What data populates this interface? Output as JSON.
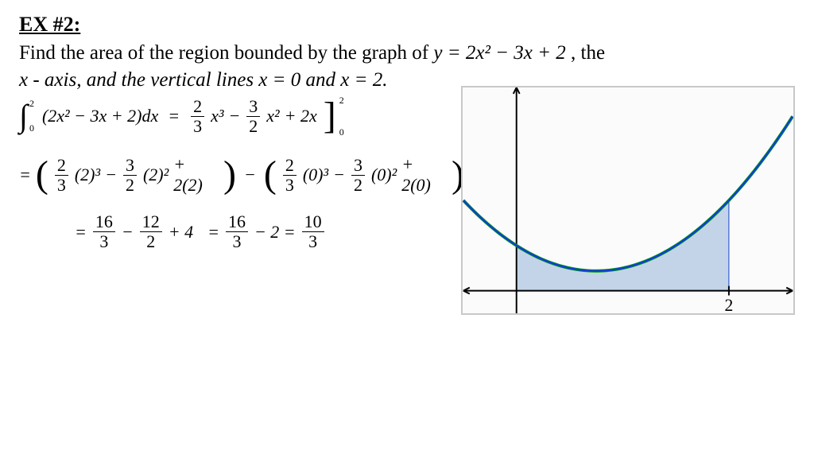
{
  "heading": "EX #2:",
  "problem_line1_pre": "Find the area of the region bounded by the graph of ",
  "problem_eq": "y = 2x² − 3x + 2",
  "problem_line1_post": ", the",
  "problem_line2": "x - axis, and the vertical lines x = 0 and x = 2.",
  "work": {
    "line1": {
      "integrand": "(2x² − 3x + 2)dx",
      "lb": "0",
      "ub": "2",
      "eq": "=",
      "t1_num": "2",
      "t1_den": "3",
      "t1_tail": "x³",
      "minus1": "−",
      "t2_num": "3",
      "t2_den": "2",
      "t2_tail": "x²",
      "plus": "+ 2x",
      "eval_lb": "0",
      "eval_ub": "2"
    },
    "line2": {
      "eq": "=",
      "a_num": "2",
      "a_den": "3",
      "a_tail": "(2)³",
      "m1": "−",
      "b_num": "3",
      "b_den": "2",
      "b_tail": "(2)²",
      "p1": "+ 2(2)",
      "minus": "−",
      "c_num": "2",
      "c_den": "3",
      "c_tail": "(0)³",
      "m2": "−",
      "d_num": "3",
      "d_den": "2",
      "d_tail": "(0)²",
      "p2": "+ 2(0)"
    },
    "line3": {
      "eq1": "=",
      "f1_num": "16",
      "f1_den": "3",
      "m1": "−",
      "f2_num": "12",
      "f2_den": "2",
      "p": "+ 4",
      "eq2": "=",
      "f3_num": "16",
      "f3_den": "3",
      "m2": "− 2 =",
      "f4_num": "10",
      "f4_den": "3"
    }
  },
  "graph": {
    "x_axis_label": "2",
    "curve_color": "#1040d0",
    "curve_color_outer": "#00a000",
    "fill_color": "#b8cce4",
    "fill_opacity": 0.85,
    "axis_color": "#000000",
    "x_range": [
      -0.5,
      2.6
    ],
    "y_range": [
      -1,
      9
    ],
    "parabola_a": 2,
    "parabola_b": -3,
    "parabola_c": 2,
    "shade_x0": 0,
    "shade_x1": 2,
    "panel_bg": "#fbfbfb",
    "panel_border": "#c8c8c8"
  }
}
